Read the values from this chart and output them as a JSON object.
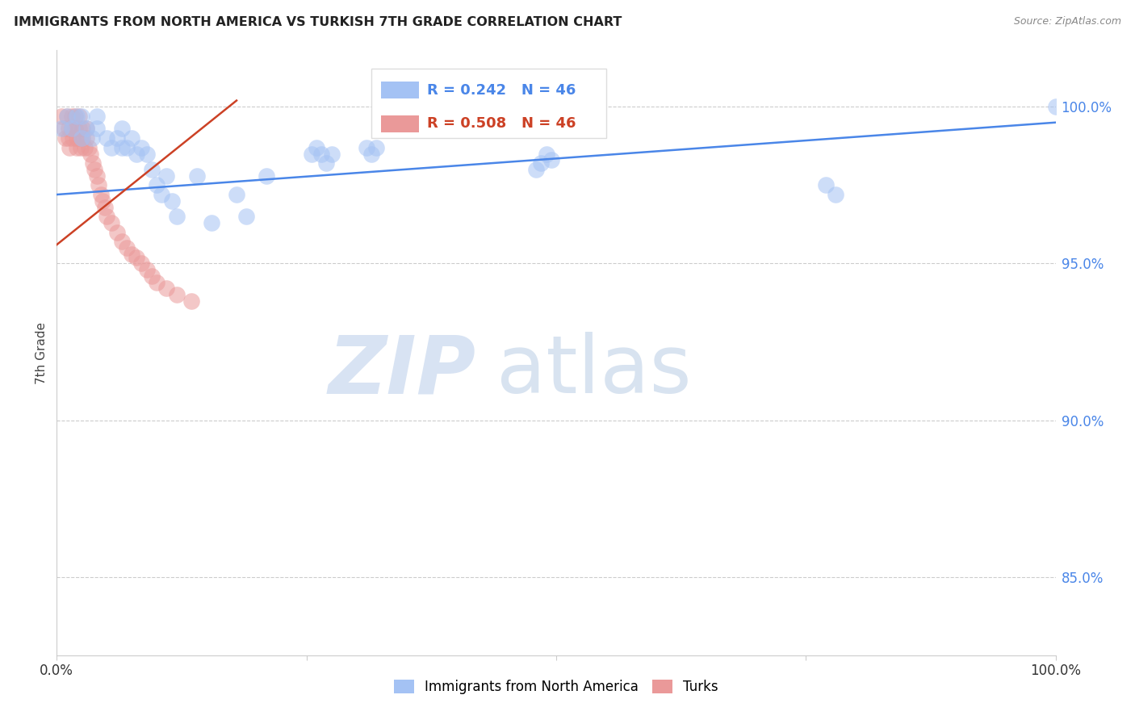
{
  "title": "IMMIGRANTS FROM NORTH AMERICA VS TURKISH 7TH GRADE CORRELATION CHART",
  "source": "Source: ZipAtlas.com",
  "ylabel": "7th Grade",
  "ytick_labels": [
    "85.0%",
    "90.0%",
    "95.0%",
    "100.0%"
  ],
  "ytick_values": [
    0.85,
    0.9,
    0.95,
    1.0
  ],
  "xlim": [
    0.0,
    1.0
  ],
  "ylim": [
    0.825,
    1.018
  ],
  "legend_blue_label": "Immigrants from North America",
  "legend_pink_label": "Turks",
  "r_blue": 0.242,
  "n_blue": 46,
  "r_pink": 0.508,
  "n_pink": 46,
  "blue_color": "#a4c2f4",
  "pink_color": "#ea9999",
  "blue_line_color": "#4a86e8",
  "pink_line_color": "#cc4125",
  "watermark_zip": "ZIP",
  "watermark_atlas": "atlas",
  "blue_scatter_x": [
    0.005,
    0.01,
    0.015,
    0.02,
    0.025,
    0.025,
    0.03,
    0.035,
    0.04,
    0.04,
    0.05,
    0.055,
    0.06,
    0.065,
    0.065,
    0.07,
    0.075,
    0.08,
    0.085,
    0.09,
    0.095,
    0.1,
    0.105,
    0.11,
    0.115,
    0.12,
    0.14,
    0.155,
    0.18,
    0.19,
    0.21,
    0.255,
    0.26,
    0.265,
    0.27,
    0.275,
    0.31,
    0.315,
    0.32,
    0.48,
    0.485,
    0.49,
    0.495,
    0.77,
    0.78,
    1.0
  ],
  "blue_scatter_y": [
    0.993,
    0.997,
    0.993,
    0.997,
    0.99,
    0.997,
    0.993,
    0.99,
    0.993,
    0.997,
    0.99,
    0.987,
    0.99,
    0.987,
    0.993,
    0.987,
    0.99,
    0.985,
    0.987,
    0.985,
    0.98,
    0.975,
    0.972,
    0.978,
    0.97,
    0.965,
    0.978,
    0.963,
    0.972,
    0.965,
    0.978,
    0.985,
    0.987,
    0.985,
    0.982,
    0.985,
    0.987,
    0.985,
    0.987,
    0.98,
    0.982,
    0.985,
    0.983,
    0.975,
    0.972,
    1.0
  ],
  "pink_scatter_x": [
    0.005,
    0.007,
    0.009,
    0.01,
    0.012,
    0.012,
    0.013,
    0.015,
    0.015,
    0.016,
    0.018,
    0.018,
    0.02,
    0.02,
    0.022,
    0.022,
    0.024,
    0.024,
    0.026,
    0.026,
    0.028,
    0.03,
    0.03,
    0.032,
    0.034,
    0.036,
    0.038,
    0.04,
    0.042,
    0.044,
    0.046,
    0.048,
    0.05,
    0.055,
    0.06,
    0.065,
    0.07,
    0.075,
    0.08,
    0.085,
    0.09,
    0.095,
    0.1,
    0.11,
    0.12,
    0.135
  ],
  "pink_scatter_y": [
    0.997,
    0.993,
    0.99,
    0.997,
    0.993,
    0.99,
    0.987,
    0.997,
    0.993,
    0.99,
    0.997,
    0.993,
    0.99,
    0.987,
    0.997,
    0.993,
    0.99,
    0.987,
    0.993,
    0.99,
    0.987,
    0.993,
    0.99,
    0.987,
    0.985,
    0.982,
    0.98,
    0.978,
    0.975,
    0.972,
    0.97,
    0.968,
    0.965,
    0.963,
    0.96,
    0.957,
    0.955,
    0.953,
    0.952,
    0.95,
    0.948,
    0.946,
    0.944,
    0.942,
    0.94,
    0.938
  ],
  "blue_trend_x": [
    0.0,
    1.0
  ],
  "blue_trend_y": [
    0.972,
    0.995
  ],
  "pink_trend_x": [
    0.0,
    0.18
  ],
  "pink_trend_y": [
    0.956,
    1.002
  ]
}
